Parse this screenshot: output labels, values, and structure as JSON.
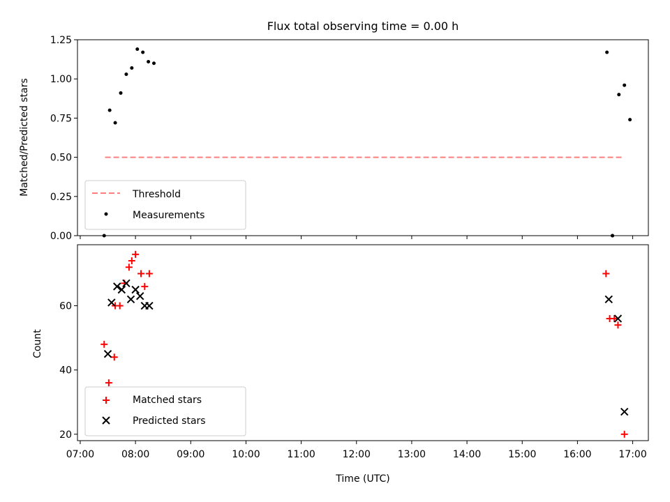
{
  "chart_data": [
    {
      "type": "scatter",
      "title": "Flux total observing time = 0.00 h",
      "xlabel": "",
      "ylabel": "Matched/Predicted stars",
      "ylim": [
        0,
        1.25
      ],
      "yticks": [
        0.0,
        0.25,
        0.5,
        0.75,
        1.0,
        1.25
      ],
      "ytick_labels": [
        "0.00",
        "0.25",
        "0.50",
        "0.75",
        "1.00",
        "1.25"
      ],
      "xlim": [
        "06:57",
        "17:17"
      ],
      "legend": "lower-left",
      "grid": false,
      "series": [
        {
          "name": "Threshold",
          "kind": "dashed-line",
          "color": "#ff7f7f",
          "x": [
            "07:27",
            "16:50"
          ],
          "y": [
            0.5,
            0.5
          ]
        },
        {
          "name": "Measurements",
          "kind": "dot",
          "color": "#000000",
          "x": [
            "07:26",
            "07:32",
            "07:38",
            "07:44",
            "07:50",
            "07:56",
            "08:02",
            "08:08",
            "08:14",
            "08:20",
            "16:32",
            "16:38",
            "16:45",
            "16:51",
            "16:57",
            "16:38"
          ],
          "y": [
            0.0,
            0.8,
            0.72,
            0.91,
            1.03,
            1.07,
            1.19,
            1.17,
            1.11,
            1.1,
            1.17,
            0.0,
            0.9,
            0.96,
            0.74,
            0.0
          ]
        }
      ]
    },
    {
      "type": "scatter",
      "title": "",
      "xlabel": "Time (UTC)",
      "ylabel": "Count",
      "ylim": [
        18,
        79
      ],
      "yticks": [
        20,
        40,
        60
      ],
      "ytick_labels": [
        "20",
        "40",
        "60"
      ],
      "xlim": [
        "06:57",
        "17:17"
      ],
      "xticks": [
        "07:00",
        "08:00",
        "09:00",
        "10:00",
        "11:00",
        "12:00",
        "13:00",
        "14:00",
        "15:00",
        "16:00",
        "17:00"
      ],
      "legend": "lower-left",
      "grid": false,
      "series": [
        {
          "name": "Matched stars",
          "kind": "plus",
          "color": "#ff0000",
          "x": [
            "07:26",
            "07:31",
            "07:37",
            "07:43",
            "07:48",
            "07:53",
            "07:56",
            "08:00",
            "08:06",
            "08:10",
            "08:15",
            "16:31",
            "16:35",
            "16:40",
            "16:44",
            "16:51",
            "07:38"
          ],
          "y": [
            48,
            36,
            44,
            60,
            67,
            72,
            74,
            76,
            70,
            66,
            70,
            70,
            56,
            56,
            54,
            20,
            60
          ]
        },
        {
          "name": "Predicted stars",
          "kind": "cross",
          "color": "#000000",
          "x": [
            "07:30",
            "07:34",
            "07:40",
            "07:45",
            "07:50",
            "07:55",
            "08:00",
            "08:05",
            "08:10",
            "08:15",
            "16:34",
            "16:44",
            "16:51"
          ],
          "y": [
            45,
            61,
            66,
            65,
            67,
            62,
            65,
            63,
            60,
            60,
            62,
            56,
            27
          ]
        }
      ]
    }
  ]
}
